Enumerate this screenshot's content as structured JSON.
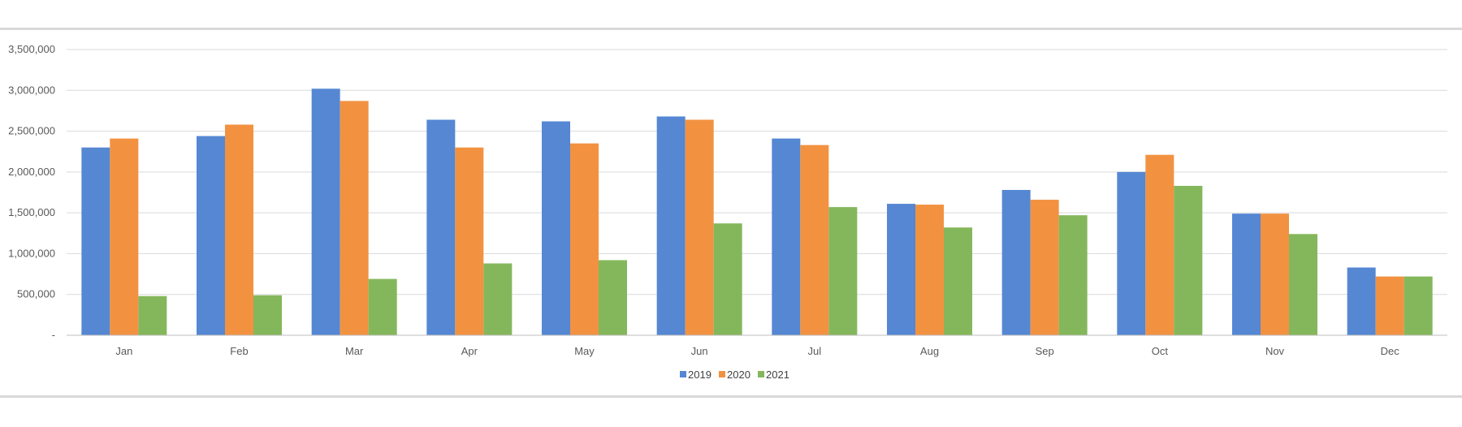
{
  "chart_data": {
    "type": "bar",
    "title": "",
    "xlabel": "",
    "ylabel": "",
    "categories": [
      "Jan",
      "Feb",
      "Mar",
      "Apr",
      "May",
      "Jun",
      "Jul",
      "Aug",
      "Sep",
      "Oct",
      "Nov",
      "Dec"
    ],
    "series": [
      {
        "name": "2019",
        "color": "#5587d3",
        "values": [
          2300000,
          2440000,
          3020000,
          2640000,
          2620000,
          2680000,
          2410000,
          1610000,
          1780000,
          2000000,
          1490000,
          830000
        ]
      },
      {
        "name": "2020",
        "color": "#f29241",
        "values": [
          2410000,
          2580000,
          2870000,
          2300000,
          2350000,
          2640000,
          2330000,
          1600000,
          1660000,
          2210000,
          1490000,
          720000
        ]
      },
      {
        "name": "2021",
        "color": "#84b75b",
        "values": [
          480000,
          490000,
          690000,
          880000,
          920000,
          1370000,
          1570000,
          1320000,
          1470000,
          1830000,
          1240000,
          720000
        ]
      }
    ],
    "ylim": [
      0,
      3500000
    ],
    "yticks": [
      "-",
      "500,000",
      "1,000,000",
      "1,500,000",
      "2,000,000",
      "2,500,000",
      "3,000,000",
      "3,500,000"
    ],
    "grid": true,
    "legend": "bottom"
  }
}
